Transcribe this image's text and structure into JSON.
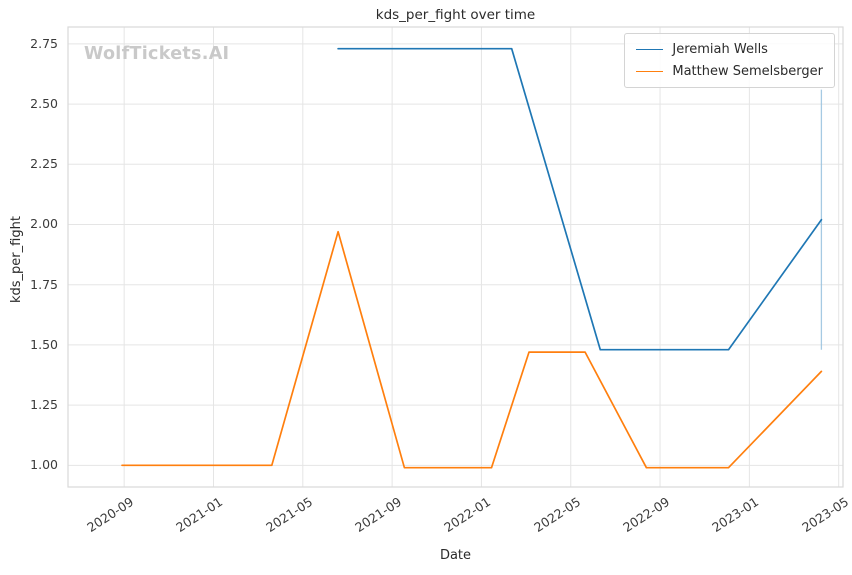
{
  "chart_data": {
    "type": "line",
    "title": "kds_per_fight over time",
    "xlabel": "Date",
    "ylabel": "kds_per_fight",
    "watermark": "WolfTickets.AI",
    "grid": true,
    "legend_position": "upper right",
    "x_ticks": [
      "2020-09",
      "2021-01",
      "2021-05",
      "2021-09",
      "2022-01",
      "2022-05",
      "2022-09",
      "2023-01",
      "2023-05"
    ],
    "y_ticks": [
      1.0,
      1.25,
      1.5,
      1.75,
      2.0,
      2.25,
      2.5,
      2.75
    ],
    "x_domain": [
      "2020-06-16",
      "2023-05-07"
    ],
    "y_domain": [
      0.91,
      2.82
    ],
    "series": [
      {
        "name": "Jeremiah Wells",
        "color": "#1f77b4",
        "points": [
          [
            "2021-06-19",
            2.73
          ],
          [
            "2022-02-12",
            2.73
          ],
          [
            "2022-06-11",
            1.48
          ],
          [
            "2022-12-03",
            1.48
          ],
          [
            "2023-04-08",
            2.02
          ]
        ],
        "error_bar": {
          "x": "2023-04-08",
          "y_min": 1.48,
          "y_max": 2.56
        }
      },
      {
        "name": "Matthew Semelsberger",
        "color": "#ff7f0e",
        "points": [
          [
            "2020-08-29",
            1.0
          ],
          [
            "2021-03-20",
            1.0
          ],
          [
            "2021-06-19",
            1.97
          ],
          [
            "2021-09-18",
            0.99
          ],
          [
            "2022-01-15",
            0.99
          ],
          [
            "2022-03-05",
            1.47
          ],
          [
            "2022-05-21",
            1.47
          ],
          [
            "2022-08-13",
            0.99
          ],
          [
            "2022-12-03",
            0.99
          ],
          [
            "2023-04-08",
            1.39
          ]
        ]
      }
    ]
  },
  "colors": {
    "grid": "#e5e5e5",
    "spine": "#d9d9d9",
    "tick_text": "#3b3b3b",
    "watermark": "#c9c9c9",
    "error_bar": "#9dc5e0"
  }
}
